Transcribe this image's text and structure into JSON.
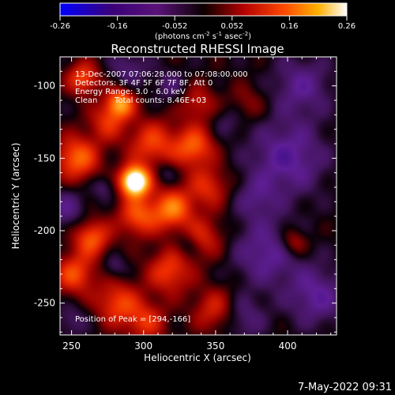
{
  "chart_data": {
    "type": "heatmap",
    "title": "Reconstructed RHESSI Image",
    "xlabel": "Heliocentric X (arcsec)",
    "ylabel": "Heliocentric Y (arcsec)",
    "xlim": [
      242,
      434
    ],
    "ylim": [
      -272,
      -80
    ],
    "xticks": [
      250,
      300,
      350,
      400
    ],
    "yticks": [
      -100,
      -150,
      -200,
      -250
    ],
    "colorbar": {
      "range": [
        -0.26,
        0.26
      ],
      "ticks": [
        "-0.26",
        "-0.16",
        "-0.052",
        "0.052",
        "0.16",
        "0.26"
      ],
      "label_main": "(photons cm",
      "label_exp1": "-2",
      "label_mid": " s",
      "label_exp2": "-1",
      "label_tail": " asec",
      "label_exp3": "-2",
      "label_close": ")"
    },
    "annotations": {
      "time": "13-Dec-2007 07:06:28.000 to 07:08:00.000",
      "detectors": "Detectors: 3F 4F 5F 6F 7F 8F, Att 0",
      "energy": "Energy Range: 3.0 - 6.0 keV",
      "method": "Clean",
      "counts": "Total counts: 8.46E+03",
      "peak": "Position of Peak = [294,-166]"
    },
    "peak": {
      "x": 294,
      "y": -166
    },
    "sources": [
      {
        "x": 294,
        "y": -166,
        "a": 0.34,
        "s": 7
      },
      {
        "x": 284,
        "y": -112,
        "a": 0.18,
        "s": 7
      },
      {
        "x": 258,
        "y": -95,
        "a": 0.13,
        "s": 8
      },
      {
        "x": 254,
        "y": -150,
        "a": 0.15,
        "s": 11
      },
      {
        "x": 275,
        "y": -125,
        "a": 0.1,
        "s": 9
      },
      {
        "x": 306,
        "y": -140,
        "a": 0.12,
        "s": 12
      },
      {
        "x": 335,
        "y": -142,
        "a": 0.14,
        "s": 10
      },
      {
        "x": 345,
        "y": -170,
        "a": 0.1,
        "s": 10
      },
      {
        "x": 320,
        "y": -185,
        "a": 0.16,
        "s": 10
      },
      {
        "x": 296,
        "y": -190,
        "a": 0.13,
        "s": 10
      },
      {
        "x": 264,
        "y": -205,
        "a": 0.14,
        "s": 9
      },
      {
        "x": 252,
        "y": -230,
        "a": 0.13,
        "s": 10
      },
      {
        "x": 282,
        "y": -250,
        "a": 0.12,
        "s": 11
      },
      {
        "x": 318,
        "y": -228,
        "a": 0.12,
        "s": 11
      },
      {
        "x": 342,
        "y": -205,
        "a": 0.09,
        "s": 10
      },
      {
        "x": 350,
        "y": -255,
        "a": 0.1,
        "s": 11
      },
      {
        "x": 302,
        "y": -263,
        "a": 0.1,
        "s": 10
      },
      {
        "x": 372,
        "y": -112,
        "a": 0.05,
        "s": 9
      },
      {
        "x": 404,
        "y": -208,
        "a": 0.09,
        "s": 7
      },
      {
        "x": 338,
        "y": -112,
        "a": 0.08,
        "s": 9
      },
      {
        "x": 386,
        "y": -215,
        "a": -0.09,
        "s": 16
      },
      {
        "x": 400,
        "y": -150,
        "a": -0.1,
        "s": 18
      },
      {
        "x": 410,
        "y": -100,
        "a": -0.08,
        "s": 14
      },
      {
        "x": 420,
        "y": -245,
        "a": -0.09,
        "s": 14
      },
      {
        "x": 246,
        "y": -185,
        "a": -0.07,
        "s": 10
      },
      {
        "x": 290,
        "y": -88,
        "a": -0.06,
        "s": 9
      },
      {
        "x": 368,
        "y": -260,
        "a": -0.07,
        "s": 11
      },
      {
        "x": 250,
        "y": -262,
        "a": -0.05,
        "s": 8
      },
      {
        "x": 318,
        "y": -100,
        "a": -0.05,
        "s": 8
      },
      {
        "x": 358,
        "y": -125,
        "a": -0.04,
        "s": 8
      },
      {
        "x": 378,
        "y": -178,
        "a": -0.06,
        "s": 10
      },
      {
        "x": 272,
        "y": -170,
        "a": -0.05,
        "s": 6
      },
      {
        "x": 315,
        "y": -160,
        "a": -0.05,
        "s": 6
      },
      {
        "x": 330,
        "y": -210,
        "a": -0.05,
        "s": 6
      },
      {
        "x": 280,
        "y": -225,
        "a": -0.05,
        "s": 6
      }
    ]
  },
  "footer": {
    "timestamp": "7-May-2022 09:31"
  }
}
